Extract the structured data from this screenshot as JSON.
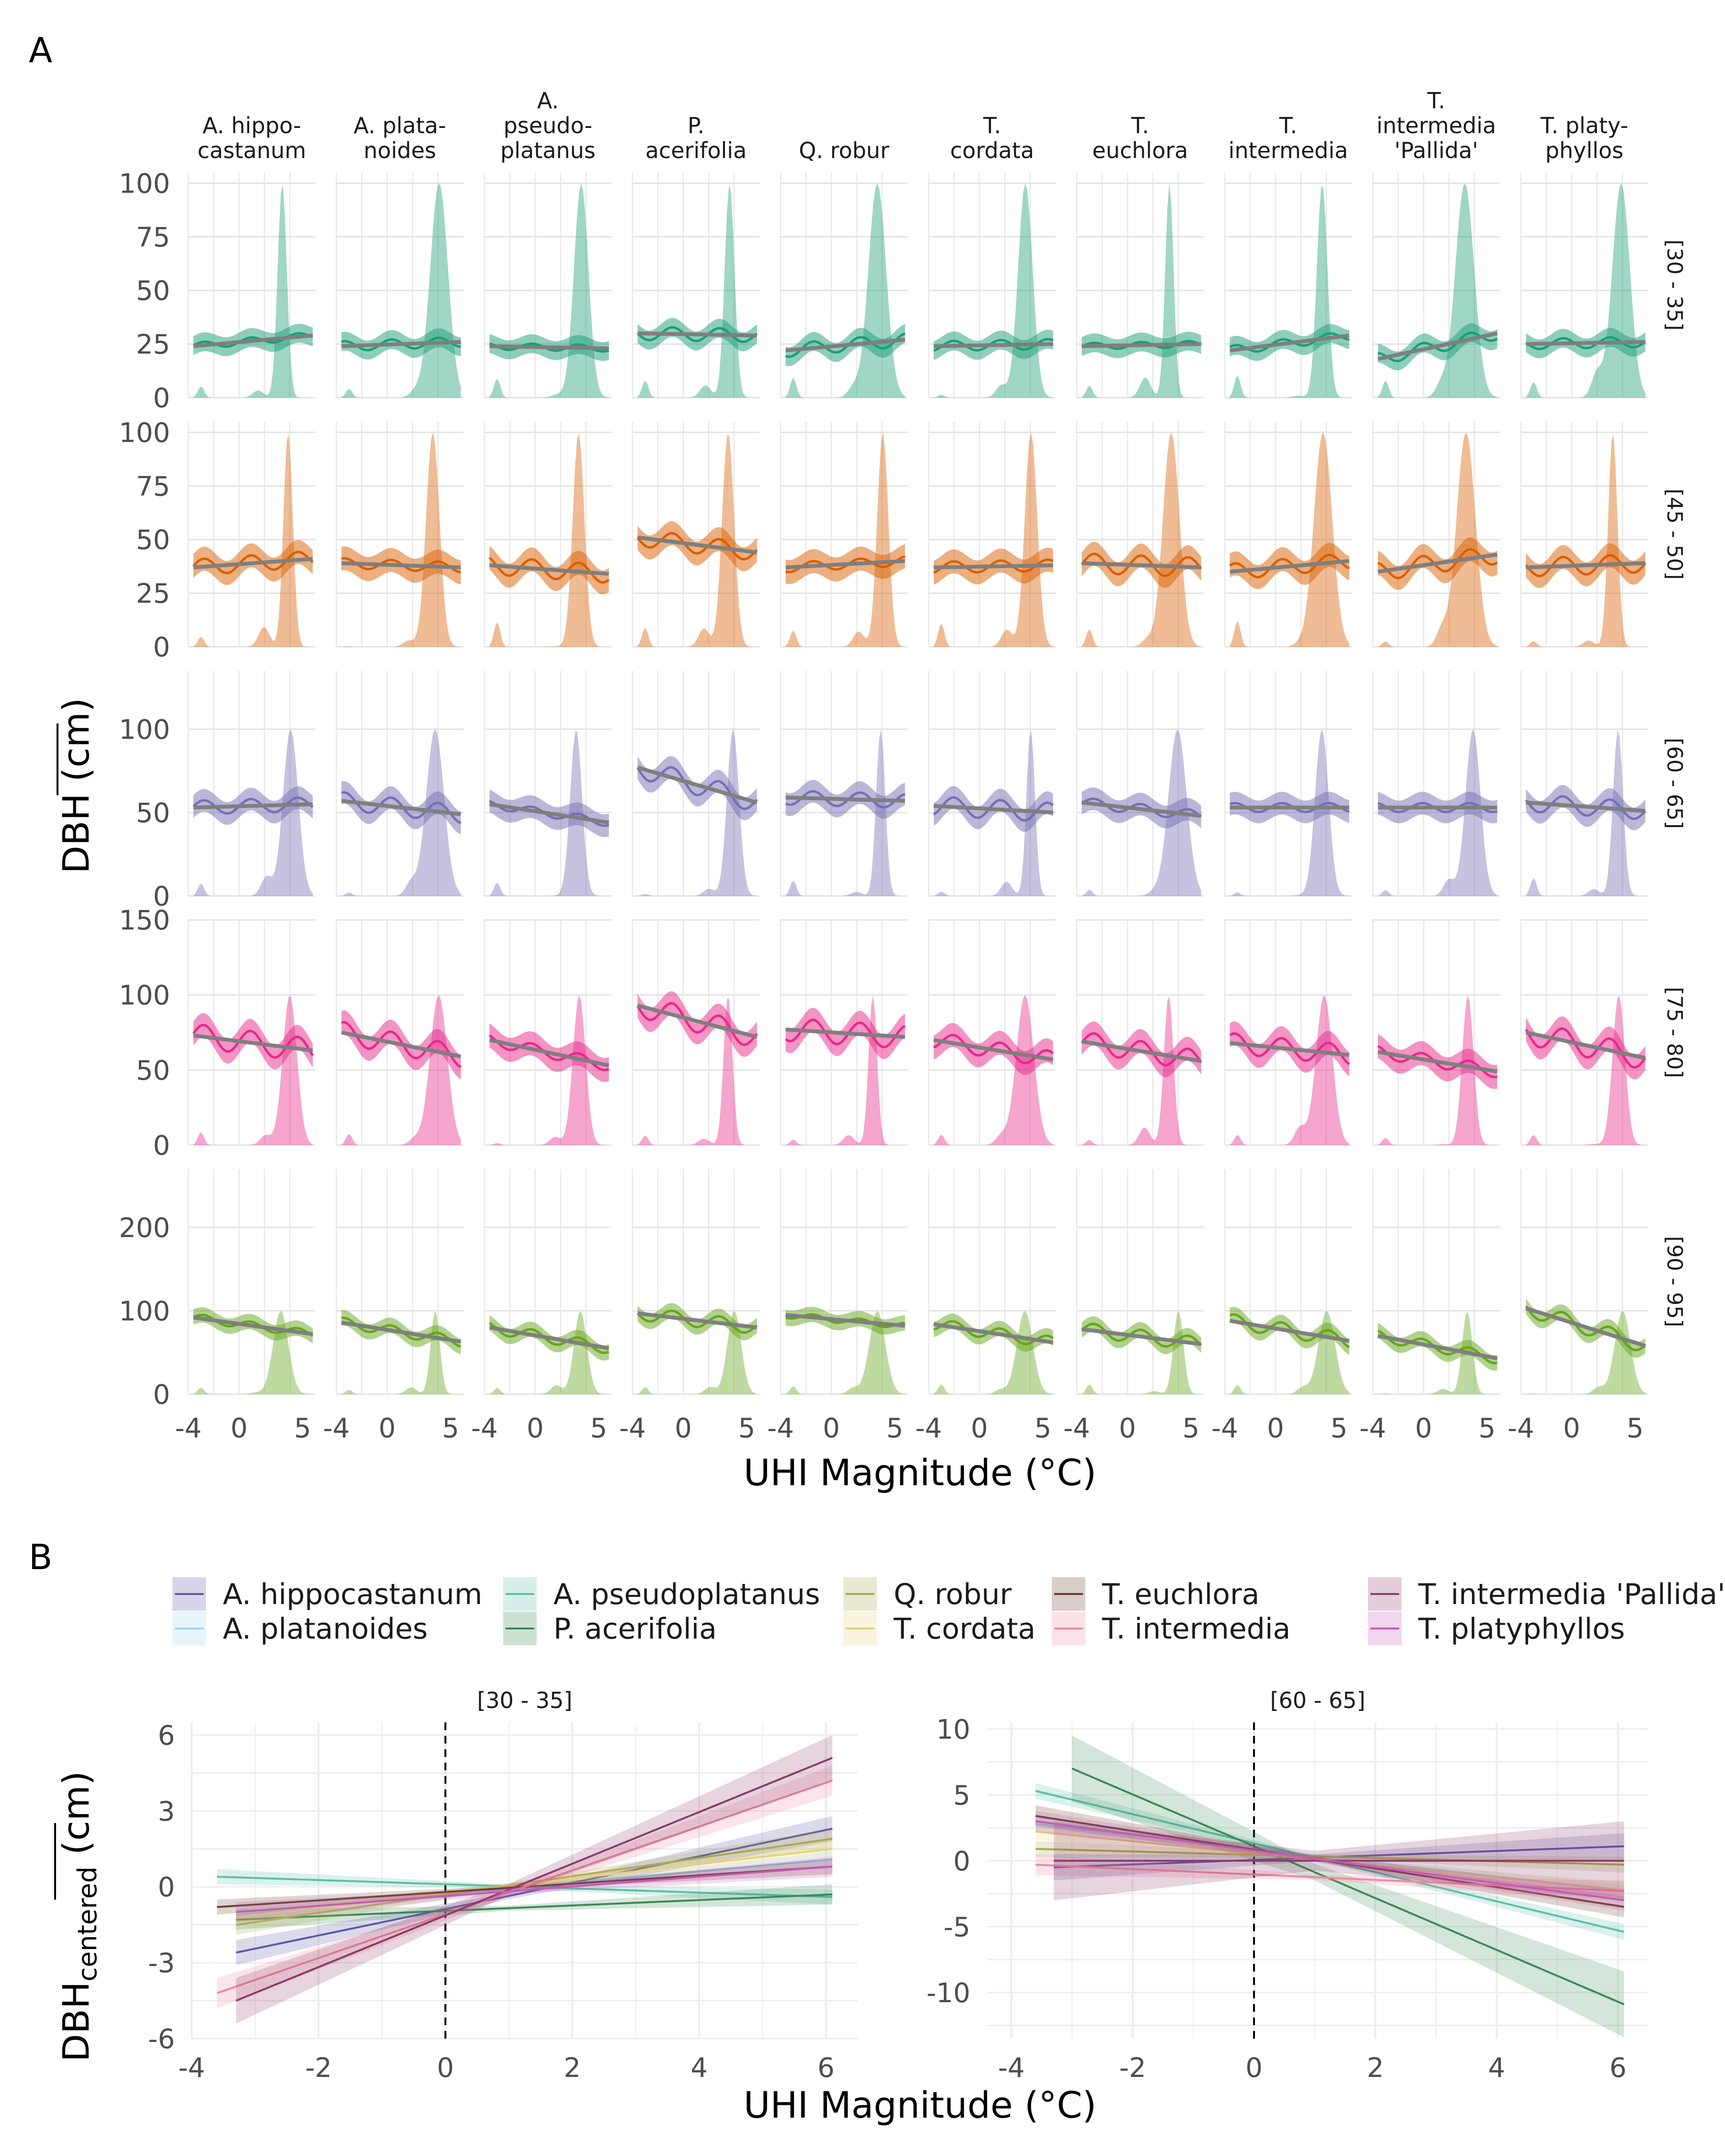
{
  "panel_labels": [
    "A",
    "B"
  ],
  "panelA": {
    "species": [
      "A. hippo-\ncastanum",
      "A. plata-\nnoides",
      "A.\npseudo-\nplatanus",
      "P.\nacerifolia",
      "Q. robur",
      "T.\ncordata",
      "T.\neuchlora",
      "T.\nintermedia",
      "T.\nintermedia\n'Pallida'",
      "T. platy-\nphyllos"
    ],
    "rows": [
      {
        "label": "[30 - 35]",
        "color": "#1b9e77",
        "ylim": [
          0,
          105
        ],
        "yticks": [
          0,
          25,
          50,
          75,
          100
        ],
        "trend": [
          [
            24,
            29
          ],
          [
            24,
            26
          ],
          [
            24,
            23
          ],
          [
            30,
            29
          ],
          [
            22,
            27
          ],
          [
            24,
            25
          ],
          [
            24,
            25
          ],
          [
            22,
            29
          ],
          [
            18,
            30
          ],
          [
            25,
            26
          ]
        ],
        "wiggle": 2
      },
      {
        "label": "[45 - 50]",
        "color": "#d95f02",
        "ylim": [
          0,
          105
        ],
        "yticks": [
          0,
          25,
          50,
          75,
          100
        ],
        "trend": [
          [
            37,
            41
          ],
          [
            39,
            37
          ],
          [
            38,
            34
          ],
          [
            51,
            44
          ],
          [
            37,
            40
          ],
          [
            37,
            38
          ],
          [
            39,
            37
          ],
          [
            35,
            40
          ],
          [
            35,
            43
          ],
          [
            37,
            39
          ]
        ],
        "wiggle": 3
      },
      {
        "label": "[60 - 65]",
        "color": "#7570b3",
        "ylim": [
          0,
          135
        ],
        "yticks": [
          0,
          50,
          100
        ],
        "trend": [
          [
            53,
            55
          ],
          [
            57,
            49
          ],
          [
            55,
            44
          ],
          [
            77,
            56
          ],
          [
            59,
            57
          ],
          [
            54,
            50
          ],
          [
            56,
            48
          ],
          [
            53,
            53
          ],
          [
            53,
            53
          ],
          [
            56,
            51
          ]
        ],
        "wiggle": 4
      },
      {
        "label": "[75 - 80]",
        "color": "#e7298a",
        "ylim": [
          0,
          150
        ],
        "yticks": [
          0,
          50,
          100,
          150
        ],
        "trend": [
          [
            73,
            63
          ],
          [
            75,
            59
          ],
          [
            70,
            53
          ],
          [
            93,
            72
          ],
          [
            77,
            72
          ],
          [
            70,
            57
          ],
          [
            69,
            56
          ],
          [
            68,
            60
          ],
          [
            62,
            49
          ],
          [
            75,
            58
          ]
        ],
        "wiggle": 5
      },
      {
        "label": "[90 - 95]",
        "color": "#66a61e",
        "ylim": [
          0,
          270
        ],
        "yticks": [
          0,
          100,
          200
        ],
        "trend": [
          [
            92,
            72
          ],
          [
            86,
            63
          ],
          [
            80,
            55
          ],
          [
            97,
            80
          ],
          [
            95,
            82
          ],
          [
            84,
            62
          ],
          [
            78,
            60
          ],
          [
            88,
            64
          ],
          [
            70,
            43
          ],
          [
            103,
            58
          ]
        ],
        "wiggle": 6
      }
    ],
    "xticks": [
      "-4",
      "0",
      "5"
    ],
    "xlim": [
      -4,
      6
    ],
    "ylabel": "DBH (cm)",
    "xlabel": "UHI Magnitude (°C)"
  },
  "panelB": {
    "legend": [
      {
        "name": "A. hippocastanum",
        "color": "#5b57a6"
      },
      {
        "name": "A. platanoides",
        "color": "#9fd7ee"
      },
      {
        "name": "A. pseudoplatanus",
        "color": "#5bbfa8"
      },
      {
        "name": "P. acerifolia",
        "color": "#3a8a55"
      },
      {
        "name": "Q. robur",
        "color": "#a9a84f"
      },
      {
        "name": "T. cordata",
        "color": "#e8d27a"
      },
      {
        "name": "T. euchlora",
        "color": "#6b3a2b"
      },
      {
        "name": "T. intermedia",
        "color": "#ee8aa0"
      },
      {
        "name": "T. intermedia 'Pallida'",
        "color": "#8e3a6a"
      },
      {
        "name": "T. platyphyllos",
        "color": "#c65ab8"
      }
    ],
    "xlabel": "UHI Magnitude (°C)",
    "ylabel_main": "DBH",
    "ylabel_sub": "centered",
    "ylabel_unit": " (cm)"
  },
  "chart_data": [
    {
      "type": "line",
      "title": "[30 - 35]",
      "xlim": [
        -4,
        6.5
      ],
      "ylim": [
        -6,
        6.5
      ],
      "xticks": [
        -4,
        -2,
        0,
        2,
        4,
        6
      ],
      "yticks": [
        -6,
        -3,
        0,
        3,
        6
      ],
      "series": [
        {
          "name": "A. hippocastanum",
          "x": [
            -3.3,
            6.1
          ],
          "y": [
            -2.6,
            2.3
          ],
          "band": 0.5
        },
        {
          "name": "A. platanoides",
          "x": [
            -3.3,
            6.1
          ],
          "y": [
            -1.1,
            1.1
          ],
          "band": 0.3
        },
        {
          "name": "A. pseudoplatanus",
          "x": [
            -3.6,
            6.1
          ],
          "y": [
            0.4,
            -0.4
          ],
          "band": 0.3
        },
        {
          "name": "P. acerifolia",
          "x": [
            -3.3,
            6.1
          ],
          "y": [
            -1.3,
            -0.3
          ],
          "band": 0.4
        },
        {
          "name": "Q. robur",
          "x": [
            -3.3,
            6.1
          ],
          "y": [
            -1.5,
            1.9
          ],
          "band": 0.4
        },
        {
          "name": "T. cordata",
          "x": [
            -3.3,
            6.1
          ],
          "y": [
            -1.2,
            1.5
          ],
          "band": 0.3
        },
        {
          "name": "T. euchlora",
          "x": [
            -3.6,
            6.1
          ],
          "y": [
            -0.8,
            0.8
          ],
          "band": 0.3
        },
        {
          "name": "T. intermedia",
          "x": [
            -3.6,
            6.1
          ],
          "y": [
            -4.2,
            4.2
          ],
          "band": 0.6
        },
        {
          "name": "T. intermedia 'Pallida'",
          "x": [
            -3.3,
            6.1
          ],
          "y": [
            -4.5,
            5.1
          ],
          "band": 0.9
        },
        {
          "name": "T. platyphyllos",
          "x": [
            -3.3,
            6.1
          ],
          "y": [
            -1.0,
            0.8
          ],
          "band": 0.4
        }
      ]
    },
    {
      "type": "line",
      "title": "[60 - 65]",
      "xlim": [
        -4.4,
        6.5
      ],
      "ylim": [
        -13.5,
        10.5
      ],
      "xticks": [
        -4,
        -2,
        0,
        2,
        4,
        6
      ],
      "yticks": [
        -10,
        -5,
        0,
        5,
        10
      ],
      "series": [
        {
          "name": "A. hippocastanum",
          "x": [
            -3.3,
            6.1
          ],
          "y": [
            -0.5,
            1.1
          ],
          "band": 1.0
        },
        {
          "name": "A. platanoides",
          "x": [
            -3.6,
            6.1
          ],
          "y": [
            2.8,
            -2.3
          ],
          "band": 0.5
        },
        {
          "name": "A. pseudoplatanus",
          "x": [
            -3.6,
            6.1
          ],
          "y": [
            5.3,
            -5.4
          ],
          "band": 0.6
        },
        {
          "name": "P. acerifolia",
          "x": [
            -3.0,
            6.1
          ],
          "y": [
            7.0,
            -10.9
          ],
          "band": 2.5
        },
        {
          "name": "Q. robur",
          "x": [
            -3.6,
            6.1
          ],
          "y": [
            0.9,
            -0.3
          ],
          "band": 0.6
        },
        {
          "name": "T. cordata",
          "x": [
            -3.6,
            6.1
          ],
          "y": [
            2.2,
            -2.2
          ],
          "band": 0.6
        },
        {
          "name": "T. euchlora",
          "x": [
            -3.6,
            6.1
          ],
          "y": [
            3.4,
            -3.5
          ],
          "band": 0.8
        },
        {
          "name": "T. intermedia",
          "x": [
            -3.6,
            6.1
          ],
          "y": [
            -0.3,
            -2.3
          ],
          "band": 0.8
        },
        {
          "name": "T. intermedia 'Pallida'",
          "x": [
            -3.3,
            6.1
          ],
          "y": [
            0.0,
            0.0
          ],
          "band": 3.0
        },
        {
          "name": "T. platyphyllos",
          "x": [
            -3.6,
            6.1
          ],
          "y": [
            3.0,
            -3.0
          ],
          "band": 0.8
        }
      ]
    }
  ]
}
